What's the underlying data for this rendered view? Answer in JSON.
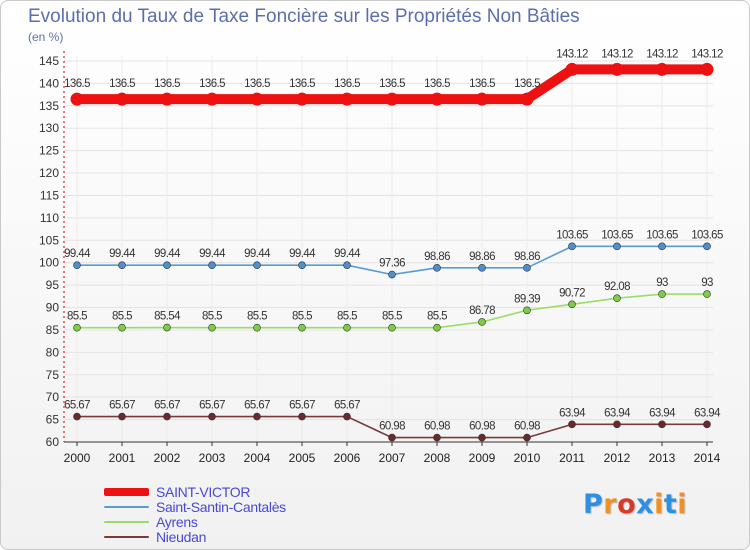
{
  "title": "Evolution du Taux de Taxe Foncière sur les Propriétés Non Bâties",
  "unit": "(en %)",
  "logo": {
    "text": "Proxiti",
    "colors": [
      "#2f8fe0",
      "#f09020",
      "#d83a2a",
      "#2f8fe0",
      "#f09020",
      "#2f8fe0",
      "#f09020"
    ]
  },
  "chart_data": {
    "type": "line",
    "title": "Evolution du Taux de Taxe Foncière sur les Propriétés Non Bâties",
    "ylabel": "(en %)",
    "x": [
      "2000",
      "2001",
      "2002",
      "2003",
      "2004",
      "2005",
      "2006",
      "2007",
      "2008",
      "2009",
      "2010",
      "2011",
      "2012",
      "2013",
      "2014"
    ],
    "ylim": [
      60,
      145
    ],
    "yticks": [
      60,
      65,
      70,
      75,
      80,
      85,
      90,
      95,
      100,
      105,
      110,
      115,
      120,
      125,
      130,
      135,
      140,
      145
    ],
    "grid": true,
    "legend_position": "bottom-left",
    "series": [
      {
        "name": "SAINT-VICTOR",
        "color": "#ee1111",
        "marker": "#ee1111",
        "bold": true,
        "values": [
          136.5,
          136.5,
          136.5,
          136.5,
          136.5,
          136.5,
          136.5,
          136.5,
          136.5,
          136.5,
          136.5,
          143.12,
          143.12,
          143.12,
          143.12
        ],
        "labels": [
          "136.5",
          "136.5",
          "136.5",
          "136.5",
          "136.5",
          "136.5",
          "136.5",
          "136.5",
          "136.5",
          "136.5",
          "136.5",
          "143.12",
          "143.12",
          "143.12",
          "143.12"
        ]
      },
      {
        "name": "Saint-Santin-Cantalès",
        "color": "#5b9bd5",
        "marker": "#4f8fce",
        "values": [
          99.44,
          99.44,
          99.44,
          99.44,
          99.44,
          99.44,
          99.44,
          97.36,
          98.86,
          98.86,
          98.86,
          103.65,
          103.65,
          103.65,
          103.65
        ],
        "labels": [
          "99.44",
          "99.44",
          "99.44",
          "99.44",
          "99.44",
          "99.44",
          "99.44",
          "97.36",
          "98.86",
          "98.86",
          "98.86",
          "103.65",
          "103.65",
          "103.65",
          "103.65"
        ]
      },
      {
        "name": "Ayrens",
        "color": "#99dd66",
        "marker": "#7ccc44",
        "values": [
          85.5,
          85.5,
          85.54,
          85.5,
          85.5,
          85.5,
          85.5,
          85.5,
          85.5,
          86.78,
          89.39,
          90.72,
          92.08,
          93,
          93
        ],
        "labels": [
          "85.5",
          "85.5",
          "85.54",
          "85.5",
          "85.5",
          "85.5",
          "85.5",
          "85.5",
          "85.5",
          "86.78",
          "89.39",
          "90.72",
          "92.08",
          "93",
          "93"
        ]
      },
      {
        "name": "Nieudan",
        "color": "#7a3a3a",
        "marker": "#6a2a2a",
        "values": [
          65.67,
          65.67,
          65.67,
          65.67,
          65.67,
          65.67,
          65.67,
          60.98,
          60.98,
          60.98,
          60.98,
          63.94,
          63.94,
          63.94,
          63.94
        ],
        "labels": [
          "65.67",
          "65.67",
          "65.67",
          "65.67",
          "65.67",
          "65.67",
          "65.67",
          "60.98",
          "60.98",
          "60.98",
          "60.98",
          "63.94",
          "63.94",
          "63.94",
          "63.94"
        ]
      }
    ]
  }
}
